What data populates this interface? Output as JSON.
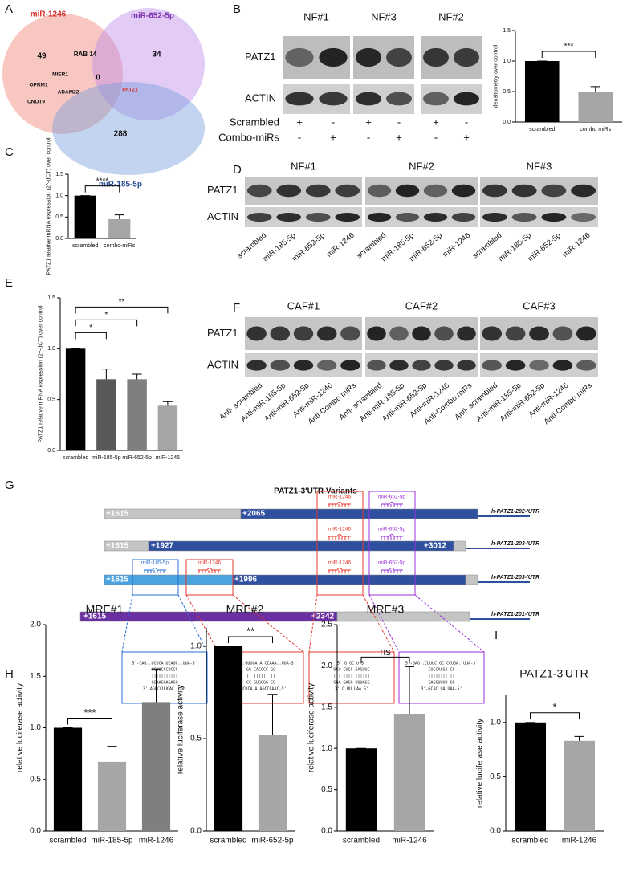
{
  "venn": {
    "label": "A",
    "sets": [
      {
        "name": "miR-1246",
        "unique": 49
      },
      {
        "name": "miR-652-5p",
        "unique": 34
      },
      {
        "name": "miR-185-5p",
        "unique": 288
      }
    ],
    "all_three": 0,
    "overlaps": [
      "RAB 14",
      "MIER1",
      "OPRM1",
      "ADAM22",
      "CNOT9",
      "PATZ1"
    ]
  },
  "blot_b": {
    "label": "B",
    "groups": [
      "NF#1",
      "NF#3",
      "NF#2"
    ],
    "rows": [
      "PATZ1",
      "ACTIN"
    ],
    "conditions": [
      {
        "name": "Scrambled",
        "signs": [
          "+",
          "-",
          "+",
          "-",
          "+",
          "-"
        ]
      },
      {
        "name": "Combo-miRs",
        "signs": [
          "-",
          "+",
          "-",
          "+",
          "-",
          "+"
        ]
      }
    ]
  },
  "blot_d": {
    "label": "D",
    "rows": [
      "PATZ1",
      "ACTIN"
    ],
    "groups": [
      {
        "name": "NF#1",
        "lanes": [
          "scrambled",
          "miR-185-5p",
          "miR-652-5p",
          "miR-1246"
        ]
      },
      {
        "name": "NF#2",
        "lanes": [
          "scrambled",
          "miR-185-5p",
          "miR-652-5p",
          "miR-1246"
        ]
      },
      {
        "name": "NF#3",
        "lanes": [
          "scrambled",
          "miR-185-5p",
          "miR-652-5p",
          "miR-1246"
        ]
      }
    ]
  },
  "blot_f": {
    "label": "F",
    "rows": [
      "PATZ1",
      "ACTIN"
    ],
    "groups": [
      {
        "name": "CAF#1",
        "lanes": [
          "Anti- scrambled",
          "Anti-miR-185-5p",
          "Anti-miR-652-5p",
          "Anti-miR-1246",
          "Anti-Combo miRs"
        ]
      },
      {
        "name": "CAF#2",
        "lanes": [
          "Anti- scrambled",
          "Anti-miR-185-5p",
          "Anti-miR-652-5p",
          "Anti-miR-1246",
          "Anti-Combo miRs"
        ]
      },
      {
        "name": "CAF#3",
        "lanes": [
          "Anti- scrambled",
          "Anti-miR-185-5p",
          "Anti-miR-652-5p",
          "Anti-miR-1246",
          "Anti-Combo miRs"
        ]
      }
    ]
  },
  "utr": {
    "label": "G",
    "title": "PATZ1-3'UTR Variants",
    "variants": [
      {
        "name": "h-PATZ1-202-'UTR",
        "positions": [
          "+1615",
          "+2065"
        ],
        "sites": [
          "miR-1246",
          "miR-652-5p"
        ]
      },
      {
        "name": "h-PATZ1-203-'UTR",
        "positions": [
          "+1615",
          "+1927",
          "+3012"
        ],
        "sites": [
          "miR-1246",
          "miR-652-5p"
        ]
      },
      {
        "name": "h-PATZ1-203-'UTR",
        "positions": [
          "+1615",
          "+1996"
        ],
        "sites": [
          "miR-185-5p",
          "miR-1246",
          "miR-1246",
          "miR-652-5p"
        ]
      },
      {
        "name": "h-PATZ1-201-'UTR",
        "positions": [
          "+1615",
          "+2342"
        ],
        "sites": []
      }
    ],
    "duplexes": [
      [
        "5'-CAG..UCUCA        UCAGC..UUA-3'",
        "CCUUCCCUCCC",
        "|||||||||||",
        "GGAAGGAGAGG",
        "3'-AGUCCUUGAC        U-5'"
      ],
      [
        "5'-GAG..GUUGA  A  CCAAA..UUA-3'",
        "GG CACCCC GC",
        "|| |||||| ||",
        "CC GUGGGG CG",
        "3'-CUCA     A  AGCCCAAC-5'"
      ],
      [
        "5' G       GC       U  3'",
        "UCU CUCC  GAGUUC",
        "||| ||||  ||||||",
        "GGA GAGG  UUUAGG",
        "3'  C    UU      UAA 5'"
      ],
      [
        "5'-GAG..CUUUC      GC CCUGA..UUA-3'",
        "CUCCAAGA  CC",
        "|||||||| ||",
        "GAGGUUUU  GG",
        "3'-GCAC       UA UAA-5'"
      ]
    ]
  },
  "chart_data": [
    {
      "type": "bar",
      "ylabel": "densitometry over control",
      "categories": [
        "scrambled",
        "combo miRs"
      ],
      "values": [
        1.0,
        0.5
      ],
      "errors": [
        0,
        0.08
      ],
      "colors": [
        "#000000",
        "#a6a6a6"
      ],
      "ylim": [
        0,
        1.5
      ],
      "yticks": [
        {
          "value": 0,
          "label": "0.0"
        },
        0.5,
        {
          "value": 1,
          "label": "1.0"
        },
        1.5
      ],
      "significance": [
        {
          "label": "***",
          "between": [
            "scrambled",
            "combo miRs"
          ]
        }
      ]
    },
    {
      "type": "bar",
      "label": "C",
      "ylabel": "PATZ1 relative mRNA expression (2^-dCT) over control",
      "categories": [
        "scrambled",
        "combo-miRs"
      ],
      "values": [
        1.0,
        0.45
      ],
      "errors": [
        0,
        0.1
      ],
      "colors": [
        "#000000",
        "#a6a6a6"
      ],
      "ylim": [
        0,
        1.5
      ],
      "yticks": [
        {
          "value": 0,
          "label": "0.0"
        },
        0.5,
        {
          "value": 1,
          "label": "1.0"
        },
        1.5
      ],
      "significance": [
        {
          "label": "****",
          "between": [
            "scrambled",
            "combo-miRs"
          ]
        }
      ]
    },
    {
      "type": "bar",
      "label": "E",
      "ylabel": "PATZ1 relative mRNA expression (2^-dCT) over control",
      "categories": [
        "scrambled",
        "miR-185-5p",
        "miR-652-5p",
        "miR-1246"
      ],
      "values": [
        1.0,
        0.7,
        0.7,
        0.44
      ],
      "errors": [
        0,
        0.1,
        0.05,
        0.04
      ],
      "colors": [
        "#000000",
        "#595959",
        "#7f7f7f",
        "#a6a6a6"
      ],
      "ylim": [
        0,
        1.5
      ],
      "yticks": [
        {
          "value": 0,
          "label": "0.0"
        },
        0.5,
        {
          "value": 1,
          "label": "1.0"
        },
        1.5
      ],
      "significance": [
        {
          "label": "*",
          "between": [
            "scrambled",
            "miR-185-5p"
          ]
        },
        {
          "label": "*",
          "between": [
            "scrambled",
            "miR-652-5p"
          ]
        },
        {
          "label": "**",
          "between": [
            "scrambled",
            "miR-1246"
          ]
        }
      ]
    },
    {
      "type": "bar",
      "label": "H",
      "title": "MRE#1",
      "ylabel": "relative luciferase activity",
      "categories": [
        "scrambled",
        "miR-185-5p",
        "miR-1246"
      ],
      "values": [
        1.0,
        0.67,
        1.25
      ],
      "errors": [
        0,
        0.15,
        0.32
      ],
      "colors": [
        "#000000",
        "#a6a6a6",
        "#7f7f7f"
      ],
      "ylim": [
        0,
        2
      ],
      "yticks": [
        {
          "value": 0,
          "label": "0.0"
        },
        0.5,
        {
          "value": 1,
          "label": "1.0"
        },
        1.5,
        {
          "value": 2,
          "label": "2.0"
        }
      ],
      "significance": [
        {
          "label": "***",
          "between": [
            "scrambled",
            "miR-185-5p"
          ]
        }
      ]
    },
    {
      "type": "bar",
      "title": "MRE#2",
      "ylabel": "relative luciferase activity",
      "categories": [
        "scrambled",
        "miR-652-5p"
      ],
      "values": [
        1.0,
        0.52
      ],
      "errors": [
        0,
        0.22
      ],
      "colors": [
        "#000000",
        "#a6a6a6"
      ],
      "ylim": [
        0,
        1.1
      ],
      "yticks": [
        {
          "value": 0,
          "label": "0.0"
        },
        0.5,
        {
          "value": 1,
          "label": "1.0"
        }
      ],
      "significance": [
        {
          "label": "**",
          "between": [
            "scrambled",
            "miR-652-5p"
          ]
        }
      ]
    },
    {
      "type": "bar",
      "title": "MRE#3",
      "ylabel": "relative luciferase activity",
      "categories": [
        "scrambled",
        "miR-1246"
      ],
      "values": [
        1.0,
        1.42
      ],
      "errors": [
        0,
        0.57
      ],
      "colors": [
        "#000000",
        "#a6a6a6"
      ],
      "ylim": [
        0,
        2.5
      ],
      "yticks": [
        {
          "value": 0,
          "label": "0.0"
        },
        0.5,
        {
          "value": 1,
          "label": "1.0"
        },
        1.5,
        {
          "value": 2,
          "label": "2.0"
        },
        2.5
      ],
      "significance": [
        {
          "label": "ns",
          "between": [
            "scrambled",
            "miR-1246"
          ]
        }
      ]
    },
    {
      "type": "bar",
      "label": "I",
      "title": "PATZ1-3'UTR",
      "ylabel": "relative luciferase activity",
      "categories": [
        "scrambled",
        "miR-1246"
      ],
      "values": [
        1.0,
        0.83
      ],
      "errors": [
        0,
        0.04
      ],
      "colors": [
        "#000000",
        "#a6a6a6"
      ],
      "ylim": [
        0,
        1.25
      ],
      "yticks": [
        {
          "value": 0,
          "label": "0.0"
        },
        0.5,
        {
          "value": 1,
          "label": "1.0"
        }
      ],
      "significance": [
        {
          "label": "*",
          "between": [
            "scrambled",
            "miR-1246"
          ]
        }
      ]
    }
  ]
}
